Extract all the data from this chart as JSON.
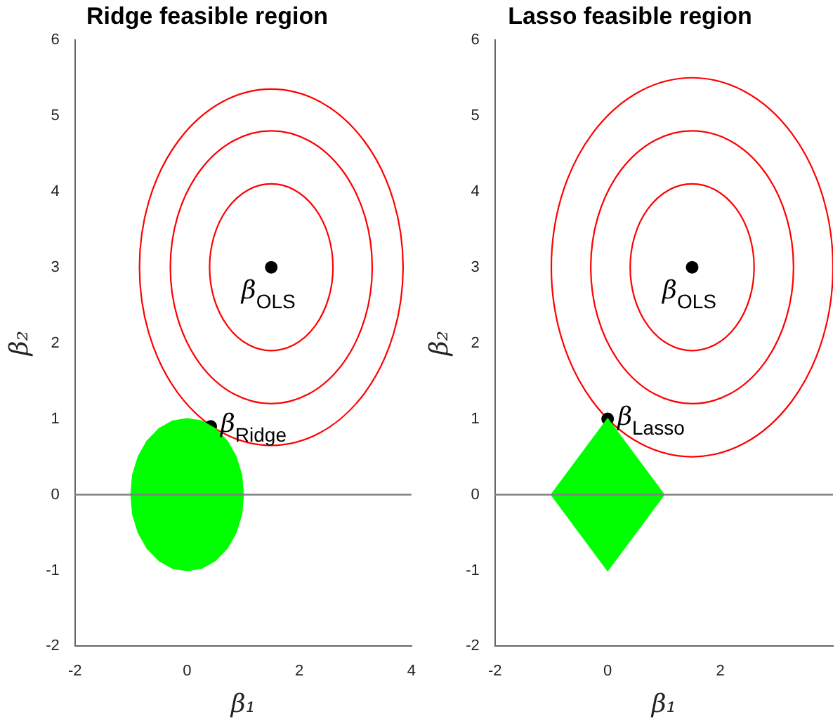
{
  "chart_data": [
    {
      "type": "area",
      "title": "Ridge feasible region",
      "xlabel": "β₁",
      "ylabel": "β₂",
      "xlim": [
        -2,
        4
      ],
      "ylim": [
        -2,
        6
      ],
      "xticks": [
        -2,
        0,
        2,
        4
      ],
      "yticks": [
        -2,
        -1,
        0,
        1,
        2,
        3,
        4,
        5,
        6
      ],
      "grid": false,
      "legend": false,
      "series": [
        {
          "color": "#00ff00",
          "x": [
            1,
            0.97,
            0.87,
            0.71,
            0.5,
            0.26,
            0,
            -0.26,
            -0.5,
            -0.71,
            -0.87,
            -0.97,
            -1,
            -0.97,
            -0.87,
            -0.71,
            -0.5,
            -0.26,
            0,
            0.26,
            0.5,
            0.71,
            0.87,
            0.97,
            1
          ],
          "values": [
            0,
            0.26,
            0.5,
            0.71,
            0.87,
            0.97,
            1,
            0.97,
            0.87,
            0.71,
            0.5,
            0.26,
            0,
            -0.26,
            -0.5,
            -0.71,
            -0.87,
            -0.97,
            -1,
            -0.97,
            -0.87,
            -0.71,
            -0.5,
            -0.26,
            0
          ]
        },
        {
          "type": "scatter",
          "color": "#000000",
          "x": [
            1.5,
            0.42
          ],
          "values": [
            3,
            0.9
          ]
        }
      ],
      "ref_lines": [
        {
          "axis": "y",
          "value": 0,
          "color": "#808080"
        }
      ],
      "annotations": [
        {
          "text": "β$_{OLS}$",
          "x": 1.5,
          "y": 3
        },
        {
          "text": "β$_{Ridge}$",
          "x": 0.42,
          "y": 0.9
        }
      ]
    },
    {
      "type": "area",
      "title": "Lasso feasible region",
      "xlabel": "β₁",
      "ylabel": "β₂",
      "xlim": [
        -2,
        4
      ],
      "ylim": [
        -2,
        6
      ],
      "xticks": [
        -2,
        0,
        2
      ],
      "yticks": [
        -2,
        -1,
        0,
        1,
        2,
        3,
        4,
        5,
        6
      ],
      "grid": false,
      "legend": false,
      "series": [
        {
          "color": "#00ff00",
          "x": [
            1,
            0,
            -1,
            0,
            1
          ],
          "values": [
            0,
            1,
            0,
            -1,
            0
          ]
        },
        {
          "type": "scatter",
          "color": "#000000",
          "x": [
            1.5,
            0
          ],
          "values": [
            3,
            1
          ]
        }
      ],
      "ref_lines": [
        {
          "axis": "y",
          "value": 0,
          "color": "#808080"
        }
      ],
      "annotations": [
        {
          "text": "β$_{OLS}$",
          "x": 1.5,
          "y": 3
        },
        {
          "text": "β$_{Lasso}$",
          "x": 0,
          "y": 1
        }
      ]
    }
  ]
}
